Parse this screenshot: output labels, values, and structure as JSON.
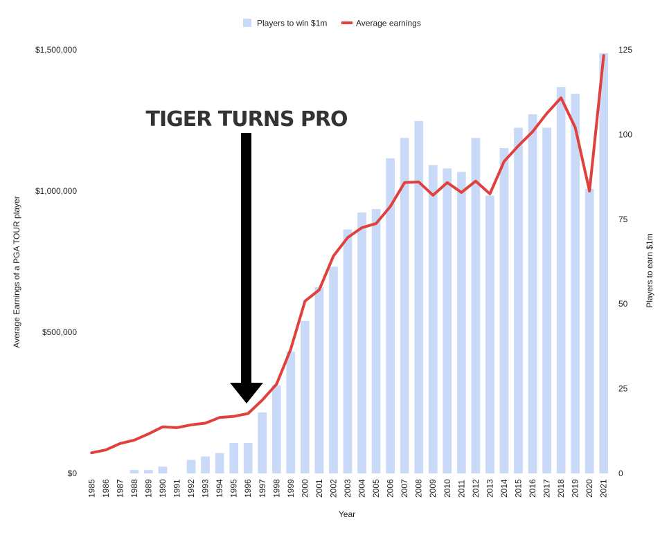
{
  "chart_data": {
    "type": "bar+line",
    "legend_position": "top",
    "legend": [
      {
        "name": "Players to win $1m",
        "color": "#c8daf7",
        "kind": "bar"
      },
      {
        "name": "Average earnings",
        "color": "#e0413c",
        "kind": "line"
      }
    ],
    "xlabel": "Year",
    "ylabel_left": "Average Earnings of a PGA TOUR player",
    "ylabel_right": "Players to earn $1m",
    "y_left": {
      "min": 0,
      "max": 1500000,
      "ticks": [
        0,
        500000,
        1000000,
        1500000
      ],
      "tick_labels": [
        "$0",
        "$500,000",
        "$1,000,000",
        "$1,500,000"
      ]
    },
    "y_right": {
      "min": 0,
      "max": 125,
      "ticks": [
        0,
        25,
        50,
        75,
        100,
        125
      ],
      "tick_labels": [
        "0",
        "25",
        "50",
        "75",
        "100",
        "125"
      ]
    },
    "categories": [
      "1985",
      "1986",
      "1987",
      "1988",
      "1989",
      "1990",
      "1991",
      "1992",
      "1993",
      "1994",
      "1995",
      "1996",
      "1997",
      "1998",
      "1999",
      "2000",
      "2001",
      "2002",
      "2003",
      "2004",
      "2005",
      "2006",
      "2007",
      "2008",
      "2009",
      "2010",
      "2011",
      "2012",
      "2013",
      "2014",
      "2015",
      "2016",
      "2017",
      "2018",
      "2019",
      "2020",
      "2021"
    ],
    "series": [
      {
        "name": "Players to win $1m",
        "axis": "right",
        "values": [
          0,
          0,
          0,
          1,
          1,
          2,
          0,
          4,
          5,
          6,
          9,
          9,
          18,
          26,
          36,
          45,
          55,
          61,
          72,
          77,
          78,
          93,
          99,
          104,
          91,
          90,
          89,
          99,
          82,
          96,
          102,
          106,
          102,
          114,
          112,
          84,
          124
        ]
      },
      {
        "name": "Average earnings",
        "axis": "left",
        "values": [
          73000,
          83000,
          106000,
          118000,
          140000,
          165000,
          162000,
          172000,
          178000,
          198000,
          202000,
          212000,
          260000,
          316000,
          440000,
          610000,
          650000,
          770000,
          835000,
          870000,
          885000,
          945000,
          1030000,
          1032000,
          985000,
          1030000,
          995000,
          1035000,
          990000,
          1105000,
          1160000,
          1210000,
          1275000,
          1330000,
          1225000,
          1000000,
          1480000
        ]
      }
    ],
    "annotations": [
      {
        "text": "TIGER TURNS PRO",
        "target": "1996",
        "arrow": "down"
      }
    ],
    "grid": false
  }
}
